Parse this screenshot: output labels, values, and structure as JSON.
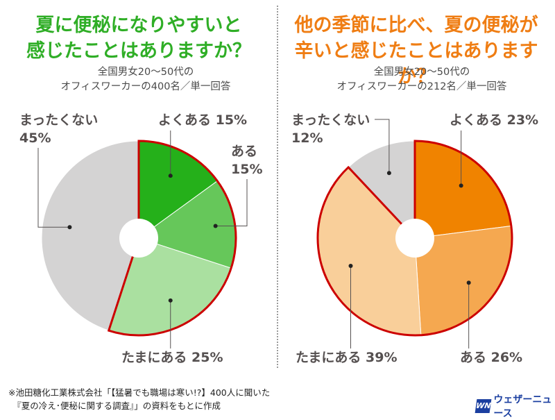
{
  "left": {
    "title_line1": "夏に便秘になりやすいと",
    "title_line2": "感じたことはありますか？",
    "subtitle_line1": "全国男女20～50代の",
    "subtitle_line2": "オフィスワーカーの400名／単一回答"
  },
  "right": {
    "title_line1": "他の季節に比べ、夏の便秘が",
    "title_line2": "辛いと感じたことはありますか？",
    "subtitle_line1": "全国男女20～50代の",
    "subtitle_line2": "オフィスワーカーの212名／単一回答"
  },
  "colors": {
    "left_title": "#2fae26",
    "right_title": "#ef7d13",
    "highlight_outline": "#cc0000",
    "none_slice": "#d4d3d3"
  },
  "chart_data": [
    {
      "type": "pie",
      "title": "夏に便秘になりやすいと感じたことはありますか？",
      "categories": [
        "よくある",
        "ある",
        "たまにある",
        "まったくない"
      ],
      "values": [
        15,
        15,
        25,
        45
      ],
      "unit": "%",
      "colors": [
        "#25b01a",
        "#66c75a",
        "#aae0a0",
        "#d4d3d3"
      ],
      "highlighted": [
        "よくある",
        "ある",
        "たまにある"
      ],
      "labels": {
        "often": "よくある 15%",
        "sometimes_word": "ある",
        "sometimes_pct": "15%",
        "occasionally": "たまにある 25%",
        "never_word": "まったくない",
        "never_pct": "45%"
      }
    },
    {
      "type": "pie",
      "title": "他の季節に比べ、夏の便秘が辛いと感じたことはありますか？",
      "categories": [
        "よくある",
        "ある",
        "たまにある",
        "まったくない"
      ],
      "values": [
        23,
        26,
        39,
        12
      ],
      "unit": "%",
      "colors": [
        "#f08300",
        "#f5a850",
        "#f9cf9a",
        "#d4d3d3"
      ],
      "highlighted": [
        "よくある",
        "ある",
        "たまにある"
      ],
      "labels": {
        "often": "よくある 23%",
        "sometimes": "ある 26%",
        "occasionally": "たまにある 39%",
        "never_word": "まったくない",
        "never_pct": "12%"
      }
    }
  ],
  "footer": {
    "line1": "※池田糖化工業株式会社「【猛暑でも職場は寒い!?】400人に聞いた",
    "line2": "　『夏の冷え･便秘に関する調査』」の資料をもとに作成"
  },
  "logo": {
    "mark": "WN",
    "name": "ウェザーニュース"
  }
}
